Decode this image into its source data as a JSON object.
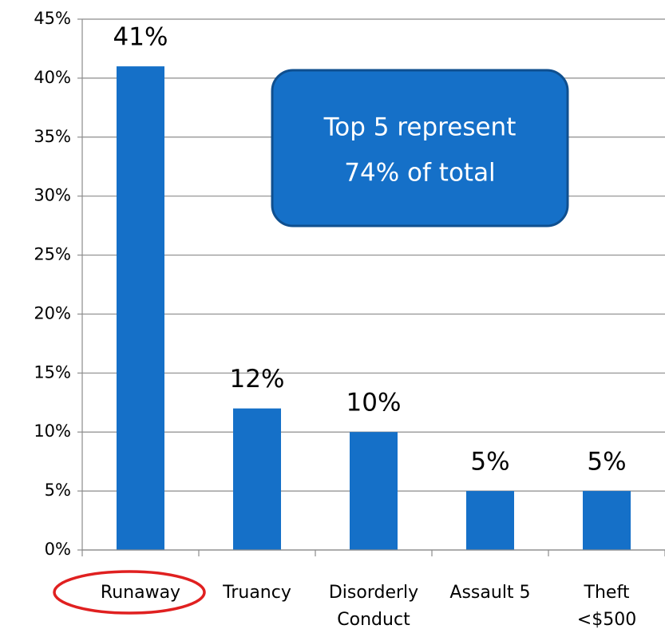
{
  "chart_data": {
    "type": "bar",
    "categories": [
      "Runaway",
      "Truancy",
      "Disorderly\nConduct",
      "Assault 5",
      "Theft\n<$500"
    ],
    "values": [
      41,
      12,
      10,
      5,
      5
    ],
    "value_labels": [
      "41%",
      "12%",
      "10%",
      "5%",
      "5%"
    ],
    "color": "#1570c8",
    "ylim": [
      0,
      45
    ],
    "yticks": [
      {
        "value": 0,
        "label": "0%"
      },
      {
        "value": 5,
        "label": "5%"
      },
      {
        "value": 10,
        "label": "10%"
      },
      {
        "value": 15,
        "label": "15%"
      },
      {
        "value": 20,
        "label": "20%"
      },
      {
        "value": 25,
        "label": "25%"
      },
      {
        "value": 30,
        "label": "30%"
      },
      {
        "value": 35,
        "label": "35%"
      },
      {
        "value": 40,
        "label": "40%"
      },
      {
        "value": 45,
        "label": "45%"
      }
    ],
    "grid": true,
    "annotation": [
      "Top 5 represent",
      "74% of total"
    ]
  }
}
